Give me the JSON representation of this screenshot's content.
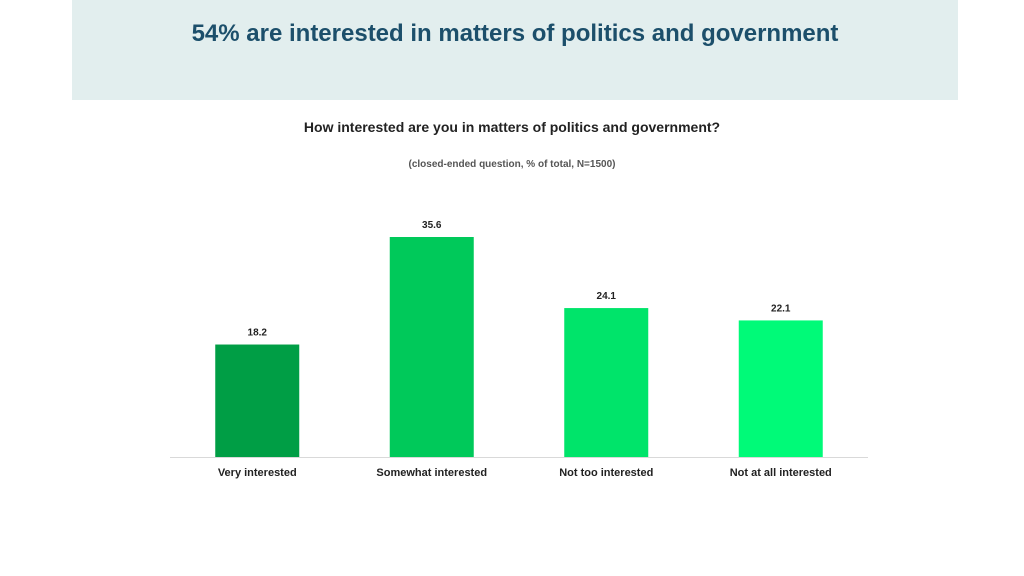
{
  "header": {
    "title": "54% are interested in matters of politics and government"
  },
  "question": "How interested are you in matters of politics and government?",
  "note": "(closed-ended question, % of total, N=1500)",
  "colors": {
    "header_bg": "#e2eeee",
    "title": "#1c4f6b",
    "bars": [
      "#009e45",
      "#00c95a",
      "#00e46a",
      "#00fa78"
    ]
  },
  "chart_data": {
    "type": "bar",
    "categories": [
      "Very interested",
      "Somewhat interested",
      "Not too interested",
      "Not at all interested"
    ],
    "values": [
      18.2,
      35.6,
      24.1,
      22.1
    ],
    "data_labels": [
      "18.2",
      "35.6",
      "24.1",
      "22.1"
    ],
    "ylim": [
      0,
      40
    ],
    "grid": false,
    "legend": "none"
  }
}
